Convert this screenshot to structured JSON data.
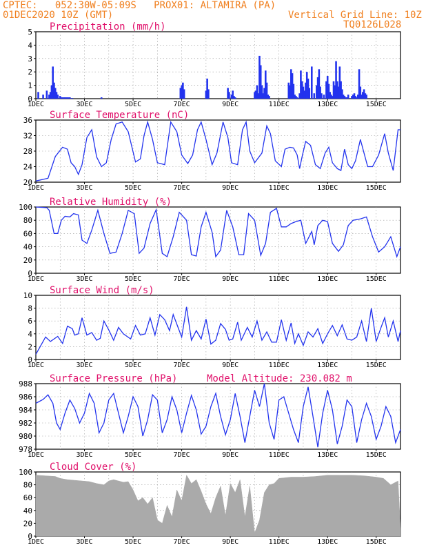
{
  "header": {
    "line1": "CPTEC:   052:30W-05:09S   PROX01: ALTAMIRA (PA)",
    "line2": "01DEC2020 10Z (GMT)",
    "grid_note": "Vertical Grid Line: 10Z",
    "product_code": "TQ0126L028"
  },
  "colors": {
    "header": "#f08020",
    "title": "#e0106a",
    "line": "#2233ee",
    "cloud": "#aaaaaa",
    "grid": "#999999"
  },
  "chart_data": [
    {
      "type": "bar",
      "title": "Precipitation (mm/h)",
      "ylim": [
        0,
        5
      ],
      "yticks": [
        0,
        1,
        2,
        3,
        4,
        5
      ],
      "x_axis": {
        "unit": "days since 01DEC 00Z",
        "range": [
          0,
          15
        ],
        "tick_labels": [
          "1DEC",
          "3DEC",
          "5DEC",
          "7DEC",
          "9DEC",
          "11DEC",
          "13DEC",
          "15DEC"
        ]
      },
      "x": [
        0.1,
        0.3,
        0.45,
        0.55,
        0.6,
        0.65,
        0.7,
        0.75,
        0.8,
        0.85,
        0.9,
        1.0,
        1.05,
        1.1,
        1.15,
        1.2,
        1.25,
        1.3,
        1.35,
        1.4,
        1.5,
        2.7,
        5.95,
        6.0,
        6.05,
        6.1,
        7.0,
        7.05,
        7.1,
        7.9,
        7.95,
        8.05,
        8.1,
        8.15,
        8.2,
        9.0,
        9.05,
        9.1,
        9.15,
        9.2,
        9.25,
        9.3,
        9.35,
        9.4,
        9.45,
        9.5,
        9.55,
        9.6,
        10.4,
        10.45,
        10.5,
        10.55,
        10.6,
        10.65,
        10.7,
        10.75,
        10.85,
        10.9,
        10.95,
        11.0,
        11.05,
        11.1,
        11.15,
        11.2,
        11.25,
        11.35,
        11.45,
        11.55,
        11.6,
        11.65,
        11.7,
        11.75,
        11.85,
        11.95,
        12.0,
        12.05,
        12.1,
        12.15,
        12.2,
        12.25,
        12.3,
        12.35,
        12.4,
        12.45,
        12.5,
        12.55,
        12.6,
        12.65,
        12.7,
        12.75,
        12.8,
        12.85,
        13.0,
        13.05,
        13.1,
        13.15,
        13.2,
        13.25,
        13.3,
        13.35,
        13.4,
        13.45,
        13.5,
        13.55,
        13.6
      ],
      "values": [
        0.5,
        0.3,
        0.6,
        0.3,
        0.5,
        1.0,
        2.4,
        1.2,
        0.8,
        0.5,
        0.3,
        0.2,
        0.1,
        0.1,
        0.1,
        0.1,
        0.1,
        0.1,
        0.1,
        0.1,
        0.05,
        0.1,
        0.8,
        1.0,
        1.2,
        0.7,
        0.6,
        1.5,
        0.7,
        0.8,
        0.5,
        0.3,
        0.6,
        0.2,
        0.1,
        0.5,
        0.6,
        1.0,
        0.4,
        3.2,
        2.5,
        1.0,
        0.4,
        0.8,
        2.1,
        1.2,
        0.3,
        0.2,
        1.2,
        1.0,
        2.2,
        1.9,
        1.1,
        0.3,
        0.2,
        0.1,
        0.4,
        2.1,
        1.3,
        0.9,
        0.6,
        1.2,
        2.0,
        1.5,
        0.8,
        2.4,
        0.4,
        1.0,
        1.6,
        2.2,
        0.9,
        0.4,
        0.3,
        1.3,
        1.7,
        1.1,
        0.5,
        0.3,
        0.2,
        1.3,
        1.0,
        2.8,
        1.3,
        0.9,
        2.4,
        1.3,
        0.7,
        0.3,
        0.2,
        0.1,
        0.1,
        0.3,
        0.2,
        0.3,
        0.4,
        0.2,
        0.1,
        0.3,
        2.2,
        0.9,
        0.3,
        0.5,
        0.7,
        0.4,
        0.3
      ]
    },
    {
      "type": "line",
      "title": "Surface Temperature (nC)",
      "ylim": [
        20,
        36
      ],
      "yticks": [
        20,
        24,
        28,
        32,
        36
      ],
      "x_axis": {
        "unit": "days since 01DEC 00Z",
        "range": [
          0,
          15
        ],
        "tick_labels": [
          "1DEC",
          "3DEC",
          "5DEC",
          "7DEC",
          "9DEC",
          "11DEC",
          "13DEC",
          "15DEC"
        ]
      },
      "x": [
        0.0,
        0.5,
        0.8,
        1.1,
        1.3,
        1.45,
        1.6,
        1.75,
        1.9,
        2.1,
        2.3,
        2.4,
        2.5,
        2.7,
        2.9,
        3.1,
        3.3,
        3.55,
        3.8,
        4.1,
        4.3,
        4.45,
        4.6,
        4.8,
        5.0,
        5.3,
        5.55,
        5.8,
        6.0,
        6.25,
        6.45,
        6.65,
        6.8,
        7.0,
        7.25,
        7.45,
        7.7,
        7.9,
        8.05,
        8.3,
        8.5,
        8.65,
        8.8,
        9.0,
        9.3,
        9.5,
        9.65,
        9.85,
        10.1,
        10.25,
        10.45,
        10.6,
        10.75,
        10.85,
        10.95,
        11.1,
        11.3,
        11.5,
        11.7,
        11.9,
        12.05,
        12.2,
        12.4,
        12.55,
        12.7,
        12.85,
        13.0,
        13.15,
        13.35,
        13.5,
        13.65,
        13.85,
        14.1,
        14.35,
        14.5,
        14.7,
        14.9,
        15.0
      ],
      "values": [
        20.3,
        21.0,
        26.6,
        29.0,
        28.5,
        25.0,
        24.0,
        22.0,
        24.5,
        31.5,
        33.5,
        30.0,
        26.5,
        24.0,
        25.0,
        31.0,
        35.0,
        35.5,
        33.0,
        25.2,
        26.0,
        32.0,
        35.5,
        31.0,
        25.0,
        24.5,
        35.5,
        33.0,
        27.0,
        24.8,
        27.0,
        33.5,
        35.5,
        31.0,
        24.5,
        27.5,
        35.5,
        31.5,
        25.0,
        24.5,
        33.5,
        35.5,
        28.0,
        25.0,
        27.5,
        34.5,
        32.5,
        25.5,
        24.0,
        28.5,
        29.0,
        28.8,
        27.0,
        23.5,
        26.5,
        30.5,
        29.5,
        24.5,
        23.5,
        27.5,
        29.0,
        25.0,
        23.5,
        23.0,
        28.5,
        24.5,
        23.5,
        25.5,
        31.0,
        27.5,
        24.0,
        24.0,
        27.0,
        32.5,
        27.5,
        23.0,
        33.5,
        33.5
      ]
    },
    {
      "type": "line",
      "title": "Relative Humidity (%)",
      "ylim": [
        0,
        100
      ],
      "yticks": [
        0,
        20,
        40,
        60,
        80,
        100
      ],
      "x_axis": {
        "unit": "days since 01DEC 00Z",
        "range": [
          0,
          15
        ],
        "tick_labels": [
          "1DEC",
          "3DEC",
          "5DEC",
          "7DEC",
          "9DEC",
          "11DEC",
          "13DEC",
          "15DEC"
        ]
      },
      "x": [
        0.0,
        0.45,
        0.55,
        0.75,
        0.9,
        1.05,
        1.2,
        1.4,
        1.55,
        1.75,
        1.9,
        2.1,
        2.3,
        2.55,
        2.8,
        3.05,
        3.3,
        3.55,
        3.8,
        4.05,
        4.25,
        4.45,
        4.7,
        4.95,
        5.2,
        5.4,
        5.65,
        5.9,
        6.2,
        6.4,
        6.6,
        6.8,
        7.0,
        7.25,
        7.4,
        7.6,
        7.85,
        8.1,
        8.35,
        8.55,
        8.75,
        9.0,
        9.25,
        9.45,
        9.65,
        9.9,
        10.1,
        10.3,
        10.5,
        10.7,
        10.9,
        11.1,
        11.35,
        11.45,
        11.6,
        11.8,
        12.0,
        12.2,
        12.45,
        12.65,
        12.85,
        13.05,
        13.35,
        13.6,
        13.85,
        14.1,
        14.35,
        14.6,
        14.85,
        15.0
      ],
      "values": [
        100,
        99,
        95,
        60,
        60,
        80,
        86,
        85,
        90,
        88,
        50,
        45,
        65,
        95,
        60,
        30,
        32,
        60,
        95,
        90,
        30,
        38,
        75,
        96,
        30,
        25,
        55,
        92,
        80,
        28,
        26,
        70,
        92,
        62,
        25,
        35,
        95,
        70,
        28,
        28,
        90,
        80,
        27,
        45,
        92,
        98,
        70,
        70,
        75,
        78,
        80,
        45,
        63,
        43,
        72,
        80,
        78,
        45,
        33,
        43,
        72,
        80,
        82,
        85,
        55,
        32,
        40,
        55,
        25,
        40
      ]
    },
    {
      "type": "line",
      "title": "Surface Wind (m/s)",
      "ylim": [
        0,
        10
      ],
      "yticks": [
        0,
        2,
        4,
        6,
        8,
        10
      ],
      "x_axis": {
        "unit": "days since 01DEC 00Z",
        "range": [
          0,
          15
        ],
        "tick_labels": [
          "1DEC",
          "3DEC",
          "5DEC",
          "7DEC",
          "9DEC",
          "11DEC",
          "13DEC",
          "15DEC"
        ]
      },
      "x": [
        0.0,
        0.4,
        0.6,
        0.9,
        1.1,
        1.3,
        1.5,
        1.6,
        1.75,
        1.9,
        2.1,
        2.3,
        2.5,
        2.65,
        2.8,
        3.0,
        3.2,
        3.4,
        3.6,
        3.9,
        4.1,
        4.3,
        4.5,
        4.7,
        4.9,
        5.1,
        5.3,
        5.5,
        5.65,
        5.8,
        6.0,
        6.2,
        6.4,
        6.6,
        6.8,
        7.0,
        7.2,
        7.4,
        7.6,
        7.8,
        7.95,
        8.1,
        8.3,
        8.45,
        8.7,
        8.9,
        9.1,
        9.3,
        9.5,
        9.7,
        9.9,
        10.1,
        10.3,
        10.5,
        10.65,
        10.8,
        11.0,
        11.2,
        11.4,
        11.6,
        11.8,
        12.0,
        12.2,
        12.4,
        12.6,
        12.8,
        13.0,
        13.2,
        13.4,
        13.6,
        13.8,
        14.0,
        14.2,
        14.35,
        14.5,
        14.7,
        14.9,
        15.0
      ],
      "values": [
        0.8,
        3.5,
        2.8,
        3.6,
        2.5,
        5.2,
        4.8,
        3.8,
        4.0,
        6.5,
        3.8,
        4.2,
        3.0,
        3.3,
        6.0,
        4.6,
        3.0,
        5.0,
        4.0,
        3.2,
        5.3,
        3.8,
        4.0,
        6.5,
        3.8,
        7.0,
        6.2,
        4.5,
        7.0,
        5.5,
        3.5,
        8.2,
        3.0,
        4.5,
        3.2,
        6.3,
        2.4,
        3.0,
        5.6,
        4.7,
        3.0,
        3.2,
        5.8,
        3.0,
        5.0,
        3.5,
        6.0,
        3.0,
        4.3,
        2.7,
        2.7,
        6.2,
        3.0,
        5.7,
        2.5,
        4.0,
        2.2,
        4.3,
        3.5,
        4.8,
        2.5,
        4.0,
        5.3,
        3.7,
        5.4,
        3.2,
        3.0,
        3.5,
        6.0,
        2.8,
        8.0,
        2.8,
        5.0,
        6.5,
        3.5,
        6.0,
        2.8,
        4.5
      ]
    },
    {
      "type": "line",
      "title": "Surface Pressure (hPa)",
      "subtitle": "Model Altitude: 230.082 m",
      "ylim": [
        978,
        988
      ],
      "yticks": [
        978,
        980,
        982,
        984,
        986,
        988
      ],
      "x_axis": {
        "unit": "days since 01DEC 00Z",
        "range": [
          0,
          15
        ],
        "tick_labels": [
          "1DEC",
          "3DEC",
          "5DEC",
          "7DEC",
          "9DEC",
          "11DEC",
          "13DEC",
          "15DEC"
        ]
      },
      "x": [
        0.0,
        0.3,
        0.5,
        0.7,
        0.85,
        1.0,
        1.2,
        1.4,
        1.6,
        1.8,
        2.0,
        2.2,
        2.4,
        2.6,
        2.8,
        3.0,
        3.2,
        3.4,
        3.6,
        3.8,
        4.0,
        4.2,
        4.4,
        4.6,
        4.8,
        5.0,
        5.2,
        5.4,
        5.6,
        5.8,
        6.0,
        6.2,
        6.4,
        6.6,
        6.8,
        7.0,
        7.2,
        7.4,
        7.6,
        7.8,
        8.0,
        8.2,
        8.4,
        8.6,
        8.8,
        9.0,
        9.2,
        9.4,
        9.6,
        9.8,
        10.0,
        10.2,
        10.4,
        10.6,
        10.8,
        11.0,
        11.2,
        11.4,
        11.6,
        11.8,
        12.0,
        12.2,
        12.4,
        12.6,
        12.8,
        13.0,
        13.2,
        13.4,
        13.6,
        13.8,
        14.0,
        14.2,
        14.4,
        14.6,
        14.8,
        15.0
      ],
      "values": [
        985,
        985.6,
        986.3,
        985.0,
        982.0,
        981.0,
        983.5,
        985.5,
        984.2,
        982.0,
        983.5,
        986.5,
        985.0,
        980.5,
        982.0,
        985.5,
        986.5,
        983.5,
        980.5,
        983.0,
        986.0,
        984.5,
        980.0,
        982.5,
        986.3,
        985.5,
        980.5,
        982.5,
        986.0,
        984.0,
        980.5,
        983.5,
        986.2,
        984.0,
        980.3,
        981.5,
        984.5,
        986.5,
        983.0,
        980.2,
        982.5,
        986.5,
        983.0,
        979.0,
        983.0,
        987.0,
        984.5,
        988.0,
        982.0,
        979.5,
        985.5,
        986.0,
        983.5,
        981.0,
        979.0,
        984.5,
        987.5,
        983.0,
        978.3,
        983.5,
        987.0,
        984.0,
        978.8,
        981.5,
        985.5,
        984.5,
        979.0,
        982.5,
        985.0,
        983.0,
        979.5,
        981.5,
        984.5,
        983.0,
        979.0,
        981.0
      ]
    },
    {
      "type": "area",
      "title": "Cloud Cover (%)",
      "ylim": [
        0,
        100
      ],
      "yticks": [
        0,
        20,
        40,
        60,
        80,
        100
      ],
      "x_axis": {
        "unit": "days since 01DEC 00Z",
        "range": [
          0,
          15
        ],
        "tick_labels": [
          "1DEC",
          "3DEC",
          "5DEC",
          "7DEC",
          "9DEC",
          "11DEC",
          "13DEC",
          "15DEC"
        ]
      },
      "x": [
        0.0,
        0.4,
        0.8,
        1.0,
        1.3,
        1.6,
        1.9,
        2.2,
        2.5,
        2.8,
        3.0,
        3.2,
        3.4,
        3.6,
        3.8,
        4.0,
        4.2,
        4.4,
        4.6,
        4.8,
        5.0,
        5.2,
        5.4,
        5.6,
        5.8,
        6.0,
        6.2,
        6.4,
        6.6,
        6.8,
        7.0,
        7.2,
        7.4,
        7.6,
        7.8,
        8.0,
        8.2,
        8.4,
        8.6,
        8.8,
        9.0,
        9.2,
        9.4,
        9.6,
        9.8,
        10.0,
        10.5,
        11.0,
        11.5,
        12.0,
        12.5,
        13.0,
        13.5,
        14.0,
        14.3,
        14.6,
        14.9,
        15.0
      ],
      "values": [
        95,
        94,
        93,
        90,
        88,
        87,
        86,
        85,
        82,
        80,
        86,
        88,
        86,
        84,
        85,
        72,
        55,
        60,
        50,
        60,
        25,
        20,
        48,
        30,
        72,
        55,
        95,
        82,
        88,
        70,
        50,
        35,
        60,
        78,
        32,
        82,
        68,
        88,
        30,
        78,
        5,
        25,
        68,
        80,
        82,
        90,
        92,
        92,
        93,
        95,
        95,
        95,
        94,
        92,
        90,
        80,
        86,
        12
      ]
    }
  ]
}
